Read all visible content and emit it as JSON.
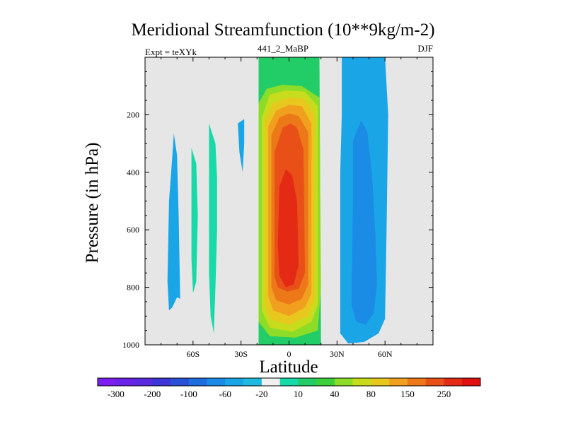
{
  "chart_data": {
    "type": "heatmap",
    "title": "Meridional Streamfunction (10**9kg/m-2)",
    "subtitle_left": "Expt = teXYk",
    "subtitle_center": "441_2_MaBP",
    "subtitle_right": "DJF",
    "xlabel": "Latitude",
    "ylabel": "Pressure (in hPa)",
    "xlim": [
      -90,
      90
    ],
    "ylim": [
      1000,
      0
    ],
    "x_ticks": [
      {
        "value": -60,
        "label": "60S"
      },
      {
        "value": -30,
        "label": "30S"
      },
      {
        "value": 0,
        "label": "0"
      },
      {
        "value": 30,
        "label": "30N"
      },
      {
        "value": 60,
        "label": "60N"
      }
    ],
    "y_ticks": [
      {
        "value": 200,
        "label": "200"
      },
      {
        "value": 400,
        "label": "400"
      },
      {
        "value": 600,
        "label": "600"
      },
      {
        "value": 800,
        "label": "800"
      },
      {
        "value": 1000,
        "label": "1000"
      }
    ],
    "missing_color": "#e6e6e6",
    "colorbar": {
      "colors": [
        "#7d1ef0",
        "#6a22e8",
        "#5a2ae0",
        "#3c35d8",
        "#2a50d8",
        "#1e6ee0",
        "#1a8ce6",
        "#1aa6e6",
        "#20bae0",
        "#f0f0f0",
        "#18d9a8",
        "#22cc66",
        "#3cd03c",
        "#8cdc28",
        "#c8dc1e",
        "#e8c81e",
        "#f0a01e",
        "#ec7818",
        "#e85018",
        "#e42a14",
        "#e01010"
      ],
      "labels": [
        {
          "after_index": 0,
          "text": "-300"
        },
        {
          "after_index": 2,
          "text": "-200"
        },
        {
          "after_index": 4,
          "text": "-100"
        },
        {
          "after_index": 6,
          "text": "-60"
        },
        {
          "after_index": 8,
          "text": "-20"
        },
        {
          "after_index": 10,
          "text": "10"
        },
        {
          "after_index": 12,
          "text": "40"
        },
        {
          "after_index": 14,
          "text": "80"
        },
        {
          "after_index": 16,
          "text": "150"
        },
        {
          "after_index": 18,
          "text": "250"
        }
      ]
    },
    "regions": [
      {
        "name": "hadley-cell-positive",
        "level": 10,
        "color": "#22cc66",
        "points": [
          [
            -19,
            0
          ],
          [
            19,
            0
          ],
          [
            20,
            1000
          ],
          [
            -19,
            1000
          ]
        ]
      },
      {
        "name": "hadley-cell-positive",
        "level": 40,
        "color": "#8cdc28",
        "points": [
          [
            -19,
            160
          ],
          [
            -14,
            110
          ],
          [
            -4,
            95
          ],
          [
            8,
            100
          ],
          [
            19,
            140
          ],
          [
            20,
            800
          ],
          [
            18,
            950
          ],
          [
            4,
            975
          ],
          [
            -12,
            970
          ],
          [
            -19,
            920
          ]
        ]
      },
      {
        "name": "hadley-cell-positive",
        "level": 80,
        "color": "#c8dc1e",
        "points": [
          [
            -17,
            210
          ],
          [
            -12,
            130
          ],
          [
            -2,
            115
          ],
          [
            10,
            120
          ],
          [
            18,
            170
          ],
          [
            18,
            860
          ],
          [
            14,
            920
          ],
          [
            2,
            955
          ],
          [
            -12,
            940
          ],
          [
            -17,
            880
          ]
        ]
      },
      {
        "name": "hadley-cell-positive",
        "level": 100,
        "color": "#e8c81e",
        "points": [
          [
            -15,
            220
          ],
          [
            -10,
            160
          ],
          [
            0,
            140
          ],
          [
            10,
            145
          ],
          [
            16,
            200
          ],
          [
            16,
            840
          ],
          [
            12,
            900
          ],
          [
            0,
            930
          ],
          [
            -12,
            910
          ],
          [
            -15,
            860
          ]
        ]
      },
      {
        "name": "hadley-cell-positive",
        "level": 150,
        "color": "#f0a01e",
        "points": [
          [
            -13,
            240
          ],
          [
            -8,
            185
          ],
          [
            0,
            165
          ],
          [
            8,
            170
          ],
          [
            14,
            230
          ],
          [
            14,
            820
          ],
          [
            10,
            870
          ],
          [
            0,
            900
          ],
          [
            -10,
            880
          ],
          [
            -13,
            830
          ]
        ]
      },
      {
        "name": "hadley-cell-positive",
        "level": 200,
        "color": "#ec7818",
        "points": [
          [
            -11,
            270
          ],
          [
            -6,
            210
          ],
          [
            0,
            195
          ],
          [
            6,
            205
          ],
          [
            12,
            260
          ],
          [
            12,
            790
          ],
          [
            8,
            840
          ],
          [
            0,
            860
          ],
          [
            -8,
            845
          ],
          [
            -11,
            800
          ]
        ]
      },
      {
        "name": "hadley-cell-positive",
        "level": 250,
        "color": "#e85018",
        "points": [
          [
            -9,
            330
          ],
          [
            -4,
            245
          ],
          [
            1,
            230
          ],
          [
            5,
            245
          ],
          [
            9,
            320
          ],
          [
            10,
            750
          ],
          [
            6,
            805
          ],
          [
            -1,
            815
          ],
          [
            -7,
            800
          ],
          [
            -9,
            760
          ]
        ]
      },
      {
        "name": "hadley-cell-positive",
        "level": 300,
        "color": "#e42a14",
        "points": [
          [
            -6,
            450
          ],
          [
            -2,
            390
          ],
          [
            2,
            410
          ],
          [
            5,
            500
          ],
          [
            6,
            720
          ],
          [
            3,
            790
          ],
          [
            -2,
            800
          ],
          [
            -6,
            760
          ],
          [
            -7,
            650
          ]
        ]
      },
      {
        "name": "ferrel-cell-negative",
        "level": -20,
        "color": "#1aa6e6",
        "points": [
          [
            33,
            0
          ],
          [
            60,
            0
          ],
          [
            62,
            200
          ],
          [
            61,
            600
          ],
          [
            60,
            910
          ],
          [
            56,
            960
          ],
          [
            47,
            990
          ],
          [
            37,
            995
          ],
          [
            32,
            960
          ],
          [
            32,
            400
          ],
          [
            33,
            200
          ]
        ]
      },
      {
        "name": "ferrel-cell-negative",
        "level": -40,
        "color": "#1a8ce6",
        "points": [
          [
            40,
            290
          ],
          [
            45,
            220
          ],
          [
            49,
            260
          ],
          [
            52,
            420
          ],
          [
            54,
            620
          ],
          [
            55,
            790
          ],
          [
            53,
            890
          ],
          [
            48,
            930
          ],
          [
            42,
            920
          ],
          [
            39,
            860
          ],
          [
            40,
            500
          ]
        ]
      },
      {
        "name": "southern-cell-negative",
        "level": -20,
        "color": "#1aa6e6",
        "points": [
          [
            -76,
            780
          ],
          [
            -75,
            500
          ],
          [
            -73,
            350
          ],
          [
            -72,
            265
          ],
          [
            -70,
            340
          ],
          [
            -69,
            550
          ],
          [
            -68,
            840
          ],
          [
            -70,
            835
          ],
          [
            -73,
            870
          ],
          [
            -75,
            880
          ]
        ]
      },
      {
        "name": "southern-cell-negative",
        "level": -20,
        "color": "#1aa6e6",
        "points": [
          [
            -32,
            230
          ],
          [
            -28,
            215
          ],
          [
            -28,
            300
          ],
          [
            -29,
            400
          ],
          [
            -31,
            330
          ]
        ]
      },
      {
        "name": "southern-cell-positive",
        "level": 10,
        "color": "#18d9a8",
        "points": [
          [
            -61,
            315
          ],
          [
            -58,
            370
          ],
          [
            -57,
            550
          ],
          [
            -58,
            780
          ],
          [
            -60,
            820
          ],
          [
            -61,
            700
          ]
        ]
      },
      {
        "name": "southern-cell-positive",
        "level": 10,
        "color": "#18d9a8",
        "points": [
          [
            -50,
            230
          ],
          [
            -46,
            300
          ],
          [
            -45,
            420
          ],
          [
            -45,
            600
          ],
          [
            -46,
            800
          ],
          [
            -47,
            960
          ],
          [
            -49,
            900
          ],
          [
            -50,
            750
          ],
          [
            -50,
            400
          ]
        ]
      }
    ]
  }
}
